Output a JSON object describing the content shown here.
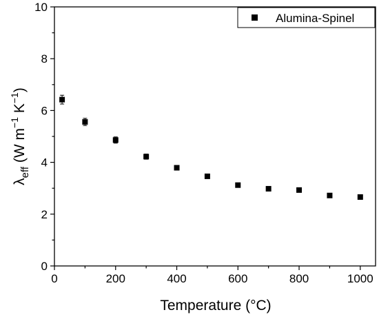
{
  "chart_data": {
    "type": "scatter",
    "title": "",
    "xlabel": "Temperature (°C)",
    "ylabel": {
      "symbol": "λ",
      "symbol_sub": "eff",
      "open": " (W m",
      "exp1": "−1",
      "mid": " K",
      "exp2": "−1",
      "close": ")"
    },
    "xlim": [
      0,
      1050
    ],
    "ylim": [
      0,
      10
    ],
    "xticks": [
      0,
      200,
      400,
      600,
      800,
      1000
    ],
    "yticks": [
      0,
      2,
      4,
      6,
      8,
      10
    ],
    "grid": false,
    "legend": "top-right",
    "series": [
      {
        "name": "Alumina-Spinel",
        "marker": "square",
        "color": "#000000",
        "x": [
          25,
          100,
          200,
          300,
          400,
          500,
          600,
          700,
          800,
          900,
          1000
        ],
        "y": [
          6.42,
          5.56,
          4.86,
          4.22,
          3.79,
          3.46,
          3.12,
          2.98,
          2.93,
          2.72,
          2.66
        ],
        "error": [
          0.17,
          0.14,
          0.12,
          0.1,
          0.05,
          0.04,
          0.04,
          0.04,
          0.04,
          0.04,
          0.04
        ]
      }
    ]
  }
}
